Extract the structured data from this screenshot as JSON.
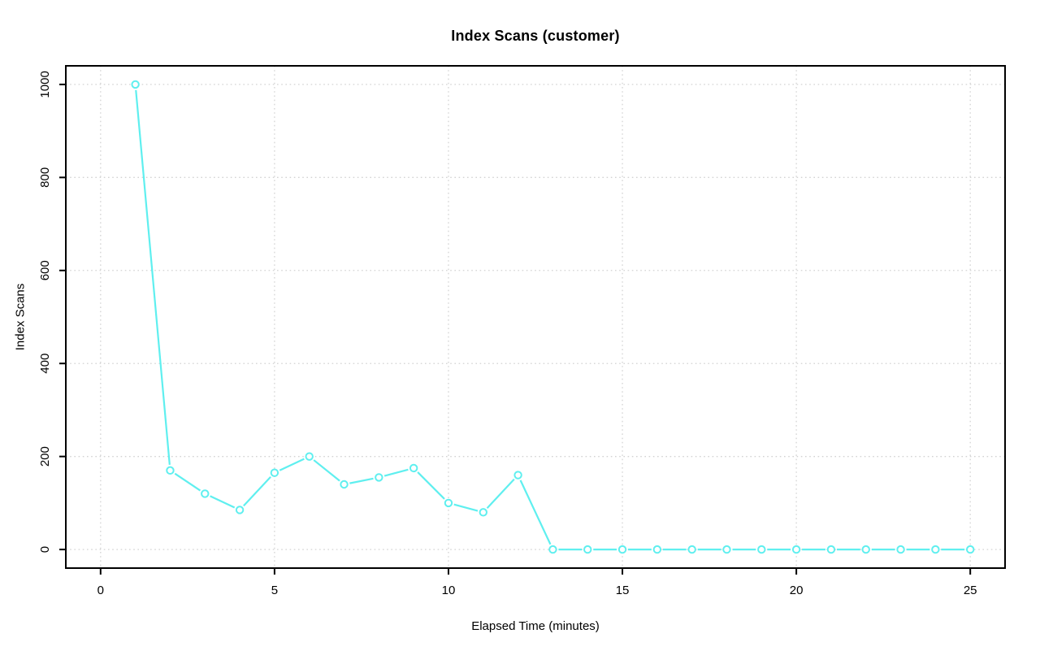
{
  "chart_data": {
    "type": "line",
    "title": "Index Scans (customer)",
    "xlabel": "Elapsed Time (minutes)",
    "ylabel": "Index Scans",
    "x": [
      1,
      2,
      3,
      4,
      5,
      6,
      7,
      8,
      9,
      10,
      11,
      12,
      13,
      14,
      15,
      16,
      17,
      18,
      19,
      20,
      21,
      22,
      23,
      24,
      25
    ],
    "series": [
      {
        "name": "index-scans",
        "values": [
          1000,
          170,
          120,
          85,
          165,
          200,
          140,
          155,
          175,
          100,
          80,
          160,
          0,
          0,
          0,
          0,
          0,
          0,
          0,
          0,
          0,
          0,
          0,
          0,
          0
        ]
      }
    ],
    "x_ticks": [
      0,
      5,
      10,
      15,
      20,
      25
    ],
    "y_ticks": [
      0,
      200,
      400,
      600,
      800,
      1000
    ],
    "x_tick_labels": [
      "0",
      "5",
      "10",
      "15",
      "20",
      "25"
    ],
    "y_tick_labels": [
      "0",
      "200",
      "400",
      "600",
      "800",
      "1000"
    ],
    "xlim": [
      -1,
      26
    ],
    "ylim": [
      -40,
      1040
    ],
    "grid": true,
    "legend_position": "none",
    "marker": "open-circle",
    "line_style": "segments-with-gaps-at-points",
    "colors": {
      "line": "#5fefef",
      "marker_stroke": "#5fefef",
      "marker_fill": "#ffffff",
      "grid": "#d3d3d3",
      "axis": "#000000",
      "text": "#000000",
      "background": "#ffffff"
    }
  }
}
